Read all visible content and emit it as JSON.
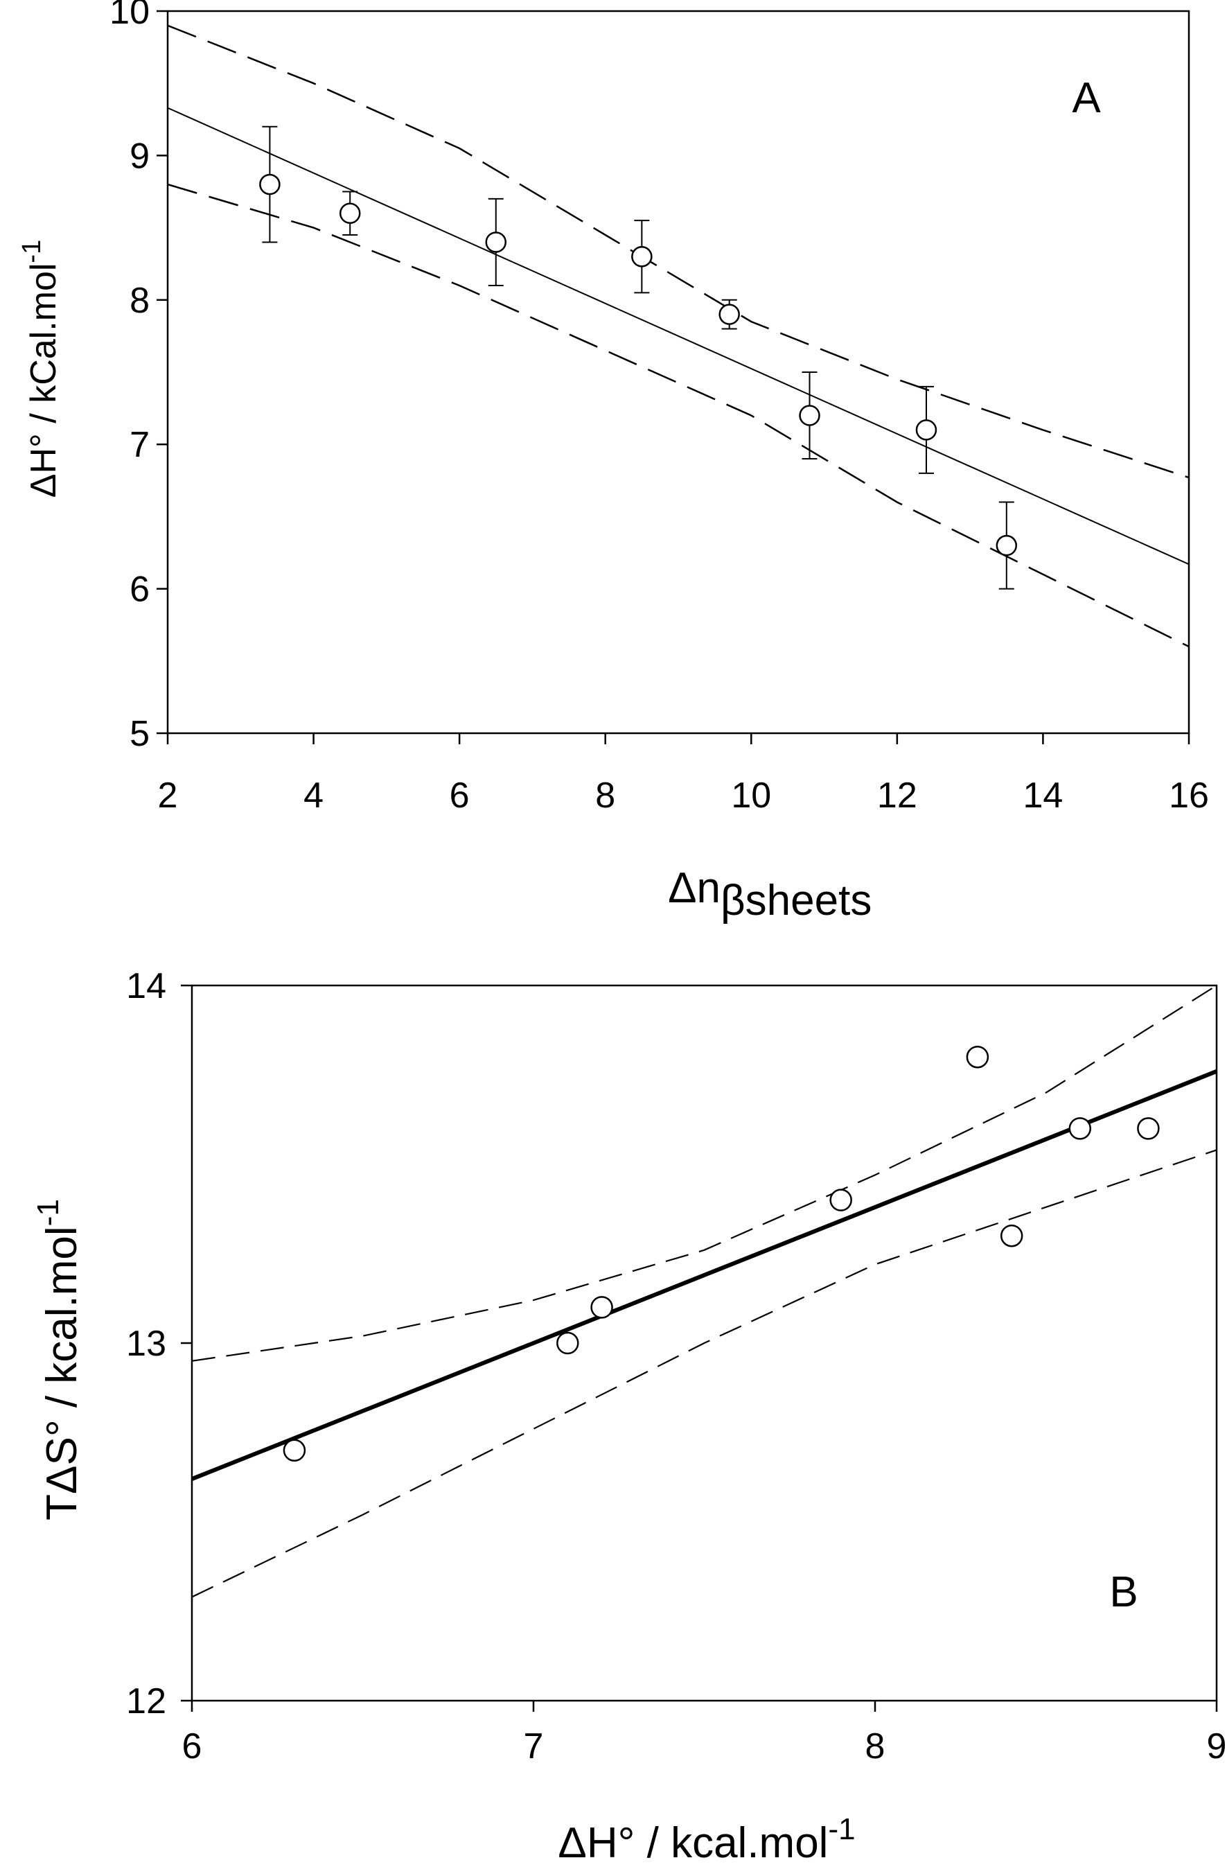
{
  "chart_data": [
    {
      "type": "scatter",
      "panel_label": "A",
      "xlim": [
        2,
        16
      ],
      "ylim": [
        5,
        10
      ],
      "x_ticks": [
        "2",
        "4",
        "6",
        "8",
        "10",
        "12",
        "14",
        "16"
      ],
      "y_ticks": [
        "5",
        "6",
        "7",
        "8",
        "9",
        "10"
      ],
      "xlabel": {
        "main": "Δn",
        "sub": "βsheets"
      },
      "ylabel": {
        "main": "ΔH° / kCal.mol",
        "sup": "-1"
      },
      "points": [
        {
          "x": 3.4,
          "y": 8.8,
          "err": 0.4
        },
        {
          "x": 4.5,
          "y": 8.6,
          "err": 0.15
        },
        {
          "x": 6.5,
          "y": 8.4,
          "err": 0.3
        },
        {
          "x": 8.5,
          "y": 8.3,
          "err": 0.25
        },
        {
          "x": 9.7,
          "y": 7.9,
          "err": 0.1
        },
        {
          "x": 10.8,
          "y": 7.2,
          "err": 0.3
        },
        {
          "x": 12.4,
          "y": 7.1,
          "err": 0.3
        },
        {
          "x": 13.5,
          "y": 6.3,
          "err": 0.3
        }
      ],
      "fit_line": [
        [
          2,
          9.33
        ],
        [
          16,
          6.17
        ]
      ],
      "upper_band": [
        [
          2,
          9.9
        ],
        [
          4,
          9.5
        ],
        [
          6,
          9.05
        ],
        [
          8,
          8.45
        ],
        [
          10,
          7.85
        ],
        [
          12,
          7.45
        ],
        [
          14,
          7.1
        ],
        [
          16,
          6.77
        ]
      ],
      "lower_band": [
        [
          2,
          8.8
        ],
        [
          4,
          8.5
        ],
        [
          6,
          8.1
        ],
        [
          8,
          7.65
        ],
        [
          10,
          7.2
        ],
        [
          12,
          6.6
        ],
        [
          14,
          6.1
        ],
        [
          16,
          5.6
        ]
      ]
    },
    {
      "type": "scatter",
      "panel_label": "B",
      "xlim": [
        6,
        9
      ],
      "ylim": [
        12,
        14
      ],
      "x_ticks": [
        "6",
        "7",
        "8",
        "9"
      ],
      "y_ticks": [
        "12",
        "13",
        "14"
      ],
      "xlabel": {
        "main": "ΔH° / kcal.mol",
        "sup": "-1"
      },
      "ylabel": {
        "main": "TΔS° / kcal.mol",
        "sup": "-1"
      },
      "points": [
        {
          "x": 6.3,
          "y": 12.7
        },
        {
          "x": 7.1,
          "y": 13.0
        },
        {
          "x": 7.2,
          "y": 13.1
        },
        {
          "x": 7.9,
          "y": 13.4
        },
        {
          "x": 8.3,
          "y": 13.8
        },
        {
          "x": 8.4,
          "y": 13.3
        },
        {
          "x": 8.6,
          "y": 13.6
        },
        {
          "x": 8.8,
          "y": 13.6
        }
      ],
      "fit_line": [
        [
          6,
          12.62
        ],
        [
          9,
          13.76
        ]
      ],
      "upper_band": [
        [
          6,
          12.95
        ],
        [
          6.5,
          13.02
        ],
        [
          7,
          13.12
        ],
        [
          7.5,
          13.26
        ],
        [
          8,
          13.47
        ],
        [
          8.5,
          13.7
        ],
        [
          9,
          14.0
        ]
      ],
      "lower_band": [
        [
          6,
          12.29
        ],
        [
          6.5,
          12.52
        ],
        [
          7,
          12.76
        ],
        [
          7.5,
          13.0
        ],
        [
          8,
          13.22
        ],
        [
          8.5,
          13.38
        ],
        [
          9,
          13.54
        ]
      ]
    }
  ]
}
